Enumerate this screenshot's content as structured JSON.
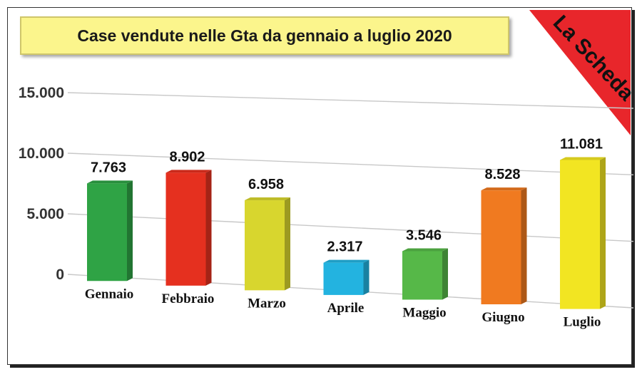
{
  "chart_data": {
    "type": "bar",
    "title": "Case vendute nelle Gta da gennaio a luglio 2020",
    "categories": [
      "Gennaio",
      "Febbraio",
      "Marzo",
      "Aprile",
      "Maggio",
      "Giugno",
      "Luglio"
    ],
    "values": [
      7763,
      8902,
      6958,
      2317,
      3546,
      8528,
      11081
    ],
    "value_labels": [
      "7.763",
      "8.902",
      "6.958",
      "2.317",
      "3.546",
      "8.528",
      "11.081"
    ],
    "colors": [
      "#2fa345",
      "#e5301f",
      "#d8d62e",
      "#23b3e0",
      "#56b848",
      "#f07a20",
      "#f2e522"
    ],
    "y_ticks": [
      {
        "value": 0,
        "label": "0"
      },
      {
        "value": 5000,
        "label": "5.000"
      },
      {
        "value": 10000,
        "label": "10.000"
      },
      {
        "value": 15000,
        "label": "15.000"
      }
    ],
    "ylim": [
      0,
      15000
    ],
    "grid": true,
    "legend": "none"
  },
  "badge": {
    "text": "La Scheda",
    "color": "#e8262b"
  }
}
